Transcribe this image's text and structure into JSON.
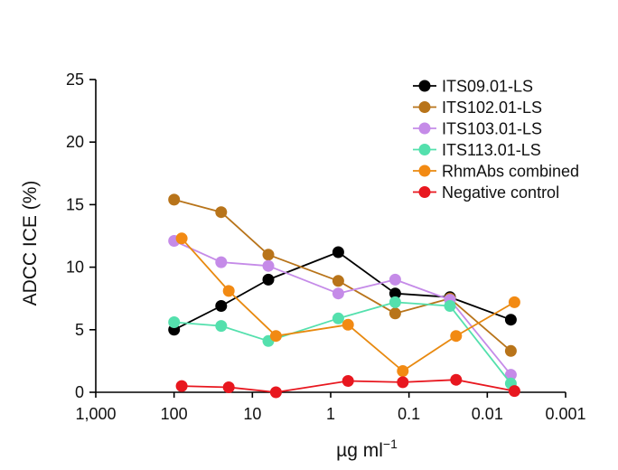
{
  "chart_data": {
    "type": "line",
    "title": "",
    "ylabel": "ADCC ICE (%)",
    "xlabel": "µg ml",
    "xlabel_superscript": "−1",
    "x_scale": "log-reversed",
    "xlim": [
      1000,
      0.001
    ],
    "ylim": [
      0,
      25
    ],
    "grid": false,
    "legend_position": "top-right",
    "x_ticks": [
      {
        "value": 1000,
        "label": "1,000"
      },
      {
        "value": 100,
        "label": "100"
      },
      {
        "value": 10,
        "label": "10"
      },
      {
        "value": 1,
        "label": "1"
      },
      {
        "value": 0.1,
        "label": "0.1"
      },
      {
        "value": 0.01,
        "label": "0.01"
      },
      {
        "value": 0.001,
        "label": "0.001"
      }
    ],
    "y_ticks": [
      {
        "value": 0,
        "label": "0"
      },
      {
        "value": 5,
        "label": "5"
      },
      {
        "value": 10,
        "label": "10"
      },
      {
        "value": 15,
        "label": "15"
      },
      {
        "value": 20,
        "label": "20"
      },
      {
        "value": 25,
        "label": "25"
      }
    ],
    "series": [
      {
        "name": "ITS09.01-LS",
        "color": "#000000",
        "line_color": "#000000",
        "x": [
          100,
          25,
          6.25,
          0.8,
          0.15,
          0.03,
          0.005
        ],
        "values": [
          5.0,
          6.9,
          9.0,
          11.2,
          7.9,
          7.6,
          5.8
        ]
      },
      {
        "name": "ITS102.01-LS",
        "color": "#b8741a",
        "line_color": "#b8741a",
        "x": [
          100,
          25,
          6.25,
          0.8,
          0.15,
          0.03,
          0.005
        ],
        "values": [
          15.4,
          14.4,
          11.0,
          8.9,
          6.3,
          7.5,
          3.3
        ]
      },
      {
        "name": "ITS103.01-LS",
        "color": "#c58be8",
        "line_color": "#c58be8",
        "x": [
          100,
          25,
          6.25,
          0.8,
          0.15,
          0.03,
          0.005
        ],
        "values": [
          12.1,
          10.4,
          10.1,
          7.9,
          9.0,
          7.4,
          1.4
        ]
      },
      {
        "name": "ITS113.01-LS",
        "color": "#54e0ad",
        "line_color": "#54e0ad",
        "x": [
          100,
          25,
          6.25,
          0.8,
          0.15,
          0.03,
          0.005
        ],
        "values": [
          5.6,
          5.3,
          4.1,
          5.9,
          7.2,
          6.9,
          0.7
        ]
      },
      {
        "name": "RhmAbs combined",
        "color": "#f28a13",
        "line_color": "#e8890f",
        "x": [
          80,
          20,
          5,
          0.6,
          0.12,
          0.025,
          0.0045
        ],
        "values": [
          12.3,
          8.1,
          4.5,
          5.4,
          1.7,
          4.5,
          7.2
        ]
      },
      {
        "name": "Negative control",
        "color": "#e8171f",
        "line_color": "#e8171f",
        "x": [
          80,
          20,
          5,
          0.6,
          0.12,
          0.025,
          0.0045
        ],
        "values": [
          0.5,
          0.4,
          0.0,
          0.9,
          0.8,
          1.0,
          0.1
        ]
      }
    ]
  }
}
